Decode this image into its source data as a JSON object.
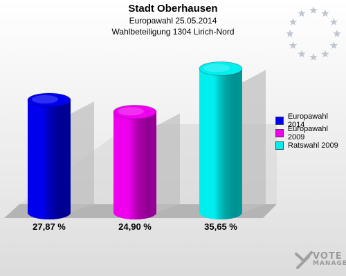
{
  "header": {
    "title": "Stadt Oberhausen",
    "subtitle1": "Europawahl 25.05.2014",
    "subtitle2": "Wahlbeteiligung 1304 Lirich-Nord"
  },
  "chart_data": {
    "type": "bar",
    "title": "Stadt Oberhausen",
    "subtitle": "Europawahl 25.05.2014 · Wahlbeteiligung 1304 Lirich-Nord",
    "categories": [
      "Europawahl 2014",
      "Europawahl 2009",
      "Ratswahl 2009"
    ],
    "values": [
      27.87,
      24.9,
      35.65
    ],
    "value_labels": [
      "27,87 %",
      "24,90 %",
      "35,65 %"
    ],
    "colors": [
      "#0000ee",
      "#ee00ee",
      "#00eeee"
    ],
    "ylim": [
      0,
      40
    ],
    "grid": false,
    "legend": "right"
  },
  "legend": {
    "items": [
      {
        "label": "Europawahl 2014",
        "color": "#0000ee"
      },
      {
        "label": "Europawahl 2009",
        "color": "#ee00ee"
      },
      {
        "label": "Ratswahl 2009",
        "color": "#00eeee"
      }
    ]
  },
  "logo": {
    "line1": "VOTE",
    "line2": "MANAGER",
    "icon": "vote-manager-x-icon"
  },
  "decoration": {
    "icon": "eu-stars-icon",
    "star_color": "#c0c6d0"
  }
}
